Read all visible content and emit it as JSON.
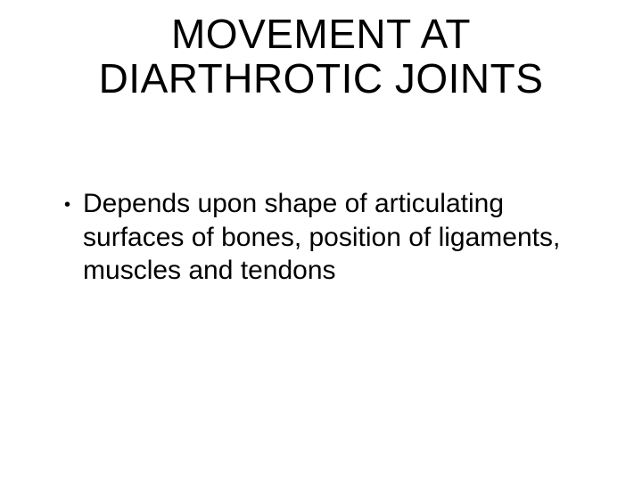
{
  "slide": {
    "background_color": "#ffffff",
    "text_color": "#000000",
    "font_family": "Comic Sans MS",
    "title": {
      "line1": "MOVEMENT AT",
      "line2": "DIARTHROTIC JOINTS",
      "fontsize": 46,
      "align": "center"
    },
    "bullets": [
      {
        "marker": "•",
        "text": "Depends upon shape of articulating surfaces of bones, position of ligaments, muscles and tendons",
        "fontsize": 30
      }
    ]
  }
}
